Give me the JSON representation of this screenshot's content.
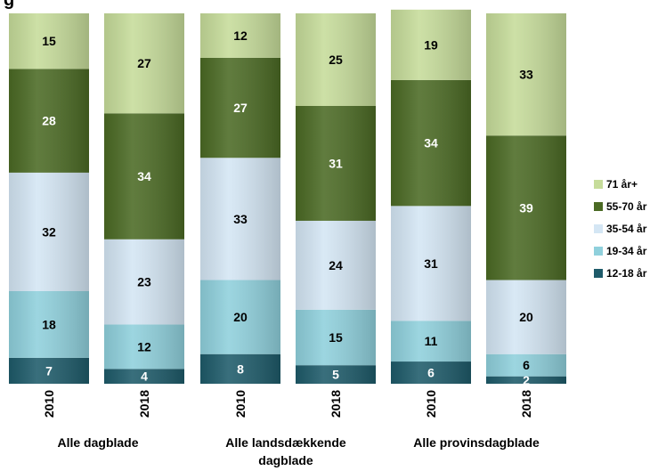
{
  "title_fragment": "g",
  "chart_data": {
    "type": "bar",
    "stacked": true,
    "ylim": [
      0,
      100
    ],
    "grid": false,
    "legend_position": "right",
    "categories": [
      "2010",
      "2018",
      "2010",
      "2018",
      "2010",
      "2018"
    ],
    "groups": [
      {
        "label": "Alle dagblade",
        "categories": [
          0,
          1
        ]
      },
      {
        "label": "Alle landsdækkende dagblade",
        "categories": [
          2,
          3
        ]
      },
      {
        "label": "Alle provinsdagblade",
        "categories": [
          4,
          5
        ]
      }
    ],
    "series": [
      {
        "name": "12-18 år",
        "color": "#1e5b6a",
        "label_color": "#ffffff",
        "values": [
          7,
          4,
          8,
          5,
          6,
          2
        ]
      },
      {
        "name": "19-34 år",
        "color": "#8fd0dc",
        "label_color": "#000000",
        "values": [
          18,
          12,
          20,
          15,
          11,
          6
        ]
      },
      {
        "name": "35-54 år",
        "color": "#d4e6f4",
        "label_color": "#000000",
        "values": [
          32,
          23,
          33,
          24,
          31,
          20
        ]
      },
      {
        "name": "55-70 år",
        "color": "#4b6a24",
        "label_color": "#ffffff",
        "values": [
          28,
          34,
          27,
          31,
          34,
          39
        ]
      },
      {
        "name": "71 år+",
        "color": "#c6dc9a",
        "label_color": "#000000",
        "values": [
          15,
          27,
          12,
          25,
          19,
          33
        ]
      }
    ]
  }
}
